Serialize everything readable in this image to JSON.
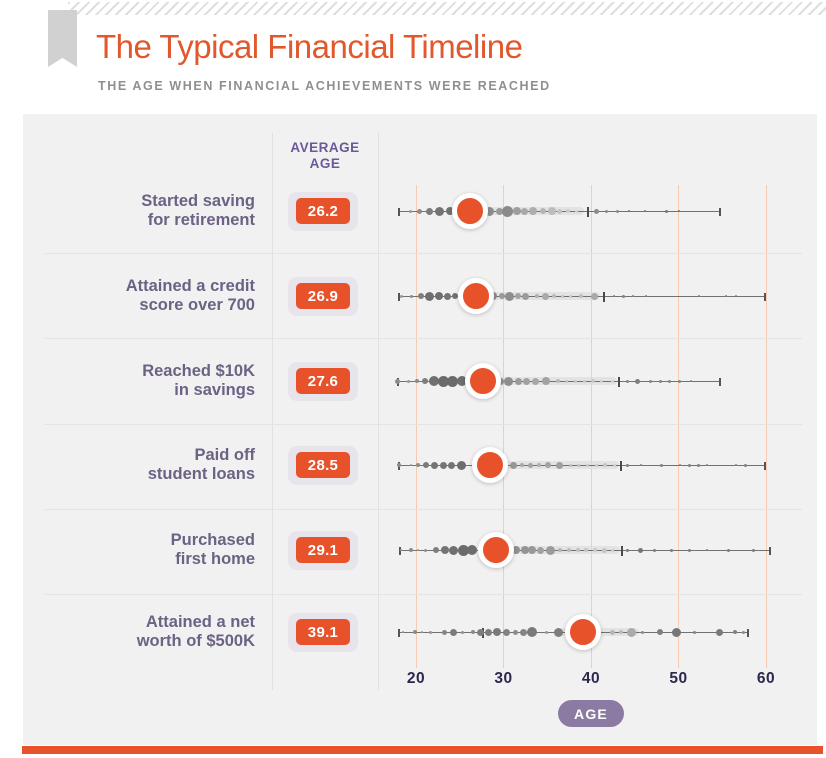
{
  "header": {
    "title": "The Typical Financial Timeline",
    "subtitle": "THE AGE WHEN FINANCIAL ACHIEVEMENTS WERE REACHED"
  },
  "table_header": {
    "line1": "AVERAGE",
    "line2": "AGE"
  },
  "colors": {
    "accent_orange": "#e8522a",
    "title_orange": "#e1582d",
    "label_purple": "#6b6284",
    "header_purple": "#69589a",
    "axis_navy": "#2d274e",
    "pill_purple": "#8b7aa2",
    "card_background": "#f2f1f1",
    "gridline_peach": "#f5ccb2",
    "badge_container": "#e7e4ec"
  },
  "chart_data": {
    "type": "scatter",
    "variant": "dot-strip-plot",
    "title": "The Typical Financial Timeline",
    "subtitle": "THE AGE WHEN FINANCIAL ACHIEVEMENTS WERE REACHED",
    "x_axis": {
      "label": "AGE",
      "ticks": [
        20,
        30,
        40,
        50,
        60
      ],
      "range": [
        17.5,
        61
      ],
      "grid": true
    },
    "rows": [
      {
        "label_lines": [
          "Started saving",
          "for retirement"
        ],
        "average_age": 26.2,
        "whisker": [
          18.1,
          54.7
        ],
        "mid_tick": 39.7,
        "band": [
          27.6,
          39.2
        ],
        "dots": [
          [
            19.4,
            1.5,
            "#999999"
          ],
          [
            20.4,
            2.5,
            "#8c8c8c"
          ],
          [
            21.5,
            3.5,
            "#7c7c7c"
          ],
          [
            22.7,
            4.5,
            "#737373"
          ],
          [
            23.9,
            4,
            "#737373"
          ],
          [
            25,
            3.5,
            "#6f6f6f"
          ],
          [
            28.4,
            4.5,
            "#8e8e8e"
          ],
          [
            29.5,
            3.5,
            "#999999"
          ],
          [
            30.4,
            5.5,
            "#8a8a8a"
          ],
          [
            31.5,
            4,
            "#9e9e9e"
          ],
          [
            32.4,
            3.5,
            "#a8a8a8"
          ],
          [
            33.4,
            4,
            "#aeaeae"
          ],
          [
            34.5,
            3,
            "#b6b6b6"
          ],
          [
            35.5,
            4,
            "#bcbcbc"
          ],
          [
            36.4,
            2.5,
            "#c3c3c3"
          ],
          [
            37.4,
            2,
            "#cbcbcb"
          ],
          [
            38.3,
            1.5,
            "#d0d0d0"
          ],
          [
            40.6,
            2.5,
            "#8b8b8b"
          ],
          [
            41.8,
            1.5,
            "#8b8b8b"
          ],
          [
            43,
            1.5,
            "#8b8b8b"
          ],
          [
            44.3,
            1,
            "#777777"
          ],
          [
            46.2,
            1,
            "#777777"
          ],
          [
            48.6,
            1.5,
            "#777777"
          ],
          [
            50,
            1,
            "#777777"
          ]
        ]
      },
      {
        "label_lines": [
          "Attained a credit",
          "score over 700"
        ],
        "average_age": 26.9,
        "whisker": [
          18.0,
          59.9
        ],
        "mid_tick": 41.5,
        "band": [
          28.0,
          41.0
        ],
        "dots": [
          [
            18.3,
            1.5,
            "#999999"
          ],
          [
            19.5,
            1.5,
            "#8c8c8c"
          ],
          [
            20.6,
            3,
            "#7e7e7e"
          ],
          [
            21.5,
            4.5,
            "#6f6f6f"
          ],
          [
            22.6,
            4,
            "#6f6f6f"
          ],
          [
            23.6,
            3.5,
            "#737373"
          ],
          [
            24.5,
            3,
            "#737373"
          ],
          [
            25.3,
            2.5,
            "#777777"
          ],
          [
            28.8,
            4,
            "#8e8e8e"
          ],
          [
            29.8,
            3,
            "#999999"
          ],
          [
            30.7,
            4.5,
            "#8e8e8e"
          ],
          [
            31.6,
            3,
            "#a3a3a3"
          ],
          [
            32.5,
            3.5,
            "#9b9b9b"
          ],
          [
            33.8,
            2,
            "#b1b1b1"
          ],
          [
            34.8,
            3.5,
            "#aaaaaa"
          ],
          [
            35.8,
            2,
            "#bbbbbb"
          ],
          [
            36.7,
            1.5,
            "#c2c2c2"
          ],
          [
            37.6,
            1.5,
            "#c6c6c6"
          ],
          [
            38.8,
            2,
            "#bdbdbd"
          ],
          [
            40.4,
            3.5,
            "#a9a9a9"
          ],
          [
            42.6,
            1,
            "#818181"
          ],
          [
            43.7,
            1.5,
            "#818181"
          ],
          [
            44.8,
            1,
            "#818181"
          ],
          [
            46.3,
            1,
            "#818181"
          ],
          [
            52.3,
            1,
            "#818181"
          ],
          [
            55.4,
            1,
            "#818181"
          ],
          [
            56.6,
            1,
            "#818181"
          ]
        ]
      },
      {
        "label_lines": [
          "Reached $10K",
          "in savings"
        ],
        "average_age": 27.6,
        "whisker": [
          17.9,
          54.7
        ],
        "mid_tick": 43.2,
        "band": [
          28.5,
          43.0
        ],
        "dots": [
          [
            17.9,
            2.5,
            "#8c8c8c"
          ],
          [
            19.1,
            1.5,
            "#999999"
          ],
          [
            20.1,
            2,
            "#8c8c8c"
          ],
          [
            21,
            3,
            "#7e7e7e"
          ],
          [
            22,
            5,
            "#707070"
          ],
          [
            23.1,
            5.5,
            "#6b6b6b"
          ],
          [
            24.2,
            5.5,
            "#6b6b6b"
          ],
          [
            25.3,
            5,
            "#6f6f6f"
          ],
          [
            29.6,
            3.5,
            "#919191"
          ],
          [
            30.6,
            4.5,
            "#8e8e8e"
          ],
          [
            31.7,
            3.5,
            "#9b9b9b"
          ],
          [
            32.6,
            3.5,
            "#a1a1a1"
          ],
          [
            33.6,
            3.5,
            "#a7a7a7"
          ],
          [
            34.9,
            4,
            "#a3a3a3"
          ],
          [
            36.2,
            2,
            "#b8b8b8"
          ],
          [
            37.2,
            1.5,
            "#c0c0c0"
          ],
          [
            38.2,
            1.5,
            "#c6c6c6"
          ],
          [
            39.2,
            1.5,
            "#cacaca"
          ],
          [
            40.2,
            2,
            "#c6c6c6"
          ],
          [
            41.2,
            1.5,
            "#cecece"
          ],
          [
            42.4,
            1.5,
            "#d2d2d2"
          ],
          [
            44.2,
            1.5,
            "#858585"
          ],
          [
            45.3,
            2.5,
            "#7e7e7e"
          ],
          [
            46.8,
            1.5,
            "#858585"
          ],
          [
            47.9,
            1.5,
            "#858585"
          ],
          [
            49,
            1.5,
            "#858585"
          ],
          [
            50.1,
            1.5,
            "#858585"
          ],
          [
            51.4,
            1,
            "#858585"
          ]
        ]
      },
      {
        "label_lines": [
          "Paid off",
          "student loans"
        ],
        "average_age": 28.5,
        "whisker": [
          18.0,
          59.9
        ],
        "mid_tick": 43.4,
        "band": [
          29.4,
          43.2
        ],
        "dots": [
          [
            18.1,
            2,
            "#8c8c8c"
          ],
          [
            19.4,
            1,
            "#999999"
          ],
          [
            20.2,
            2,
            "#8c8c8c"
          ],
          [
            21.1,
            3,
            "#7c7c7c"
          ],
          [
            22.1,
            3.5,
            "#757575"
          ],
          [
            23.1,
            3.5,
            "#757575"
          ],
          [
            24.1,
            3.5,
            "#737373"
          ],
          [
            25.2,
            4.5,
            "#6d6d6d"
          ],
          [
            31.1,
            3.5,
            "#969696"
          ],
          [
            32.1,
            2,
            "#a8a8a8"
          ],
          [
            33.1,
            2.5,
            "#a3a3a3"
          ],
          [
            34.1,
            2,
            "#b0b0b0"
          ],
          [
            35.1,
            3,
            "#a3a3a3"
          ],
          [
            36.4,
            3.5,
            "#9e9e9e"
          ],
          [
            37.6,
            1.5,
            "#bdbdbd"
          ],
          [
            38.6,
            1.5,
            "#c2c2c2"
          ],
          [
            39.6,
            1.5,
            "#c6c6c6"
          ],
          [
            40.6,
            1.5,
            "#cacaca"
          ],
          [
            41.6,
            2,
            "#c6c6c6"
          ],
          [
            42.7,
            1.5,
            "#cecece"
          ],
          [
            44.2,
            1.5,
            "#818181"
          ],
          [
            45.7,
            1,
            "#818181"
          ],
          [
            48.1,
            1.5,
            "#818181"
          ],
          [
            50.2,
            1,
            "#818181"
          ],
          [
            51.2,
            1.5,
            "#818181"
          ],
          [
            52.3,
            1.5,
            "#818181"
          ],
          [
            53.3,
            1,
            "#818181"
          ],
          [
            56.6,
            1,
            "#818181"
          ],
          [
            57.7,
            1.5,
            "#818181"
          ]
        ]
      },
      {
        "label_lines": [
          "Purchased",
          "first home"
        ],
        "average_age": 29.1,
        "whisker": [
          18.2,
          60.4
        ],
        "mid_tick": 43.5,
        "band": [
          30.0,
          43.3
        ],
        "dots": [
          [
            18.3,
            1,
            "#999999"
          ],
          [
            19.4,
            2,
            "#8c8c8c"
          ],
          [
            20.2,
            1,
            "#999999"
          ],
          [
            21.1,
            1.5,
            "#919191"
          ],
          [
            22.3,
            3,
            "#7e7e7e"
          ],
          [
            23.3,
            4,
            "#757575"
          ],
          [
            24.3,
            4.5,
            "#707070"
          ],
          [
            25.4,
            5.5,
            "#6b6b6b"
          ],
          [
            26.4,
            5,
            "#6d6d6d"
          ],
          [
            31.4,
            4,
            "#919191"
          ],
          [
            32.4,
            4,
            "#949494"
          ],
          [
            33.3,
            4,
            "#989898"
          ],
          [
            34.2,
            3.5,
            "#a1a1a1"
          ],
          [
            35.4,
            4.5,
            "#9b9b9b"
          ],
          [
            36.5,
            2,
            "#b5b5b5"
          ],
          [
            37.5,
            2,
            "#bbbbbb"
          ],
          [
            38.5,
            2,
            "#c0c0c0"
          ],
          [
            39.4,
            2,
            "#c4c4c4"
          ],
          [
            40.4,
            2,
            "#c8c8c8"
          ],
          [
            41.5,
            2.5,
            "#c4c4c4"
          ],
          [
            42.4,
            1.5,
            "#cecece"
          ],
          [
            44.2,
            1.5,
            "#7e7e7e"
          ],
          [
            45.6,
            2.5,
            "#767676"
          ],
          [
            47.2,
            1.5,
            "#7e7e7e"
          ],
          [
            49.2,
            1.5,
            "#7e7e7e"
          ],
          [
            51.2,
            1.5,
            "#7e7e7e"
          ],
          [
            53.2,
            1,
            "#7e7e7e"
          ],
          [
            55.7,
            1.5,
            "#7e7e7e"
          ],
          [
            58.6,
            1.5,
            "#7e7e7e"
          ]
        ]
      },
      {
        "label_lines": [
          "Attained a net",
          "worth of $500K"
        ],
        "average_age": 39.1,
        "whisker": [
          18.0,
          57.9
        ],
        "mid_tick": 27.7,
        "band": [
          36.5,
          45.5
        ],
        "dots": [
          [
            18.5,
            1,
            "#999999"
          ],
          [
            19.9,
            2,
            "#8c8c8c"
          ],
          [
            20.7,
            1,
            "#999999"
          ],
          [
            21.6,
            1.5,
            "#949494"
          ],
          [
            23.3,
            2.5,
            "#858585"
          ],
          [
            24.3,
            3.5,
            "#7c7c7c"
          ],
          [
            25.3,
            1.5,
            "#919191"
          ],
          [
            26.5,
            2,
            "#8c8c8c"
          ],
          [
            27.4,
            3.5,
            "#7e7e7e"
          ],
          [
            28.3,
            3.5,
            "#7e7e7e"
          ],
          [
            29.3,
            4,
            "#7a7a7a"
          ],
          [
            30.3,
            3.5,
            "#828282"
          ],
          [
            31.4,
            2.5,
            "#8c8c8c"
          ],
          [
            32.3,
            3.5,
            "#858585"
          ],
          [
            33.3,
            5,
            "#7a7a7a"
          ],
          [
            34.9,
            1.5,
            "#999999"
          ],
          [
            36.3,
            4.5,
            "#7e7e7e"
          ],
          [
            42.4,
            2.5,
            "#b5b5b5"
          ],
          [
            43.4,
            2,
            "#b9b9b9"
          ],
          [
            44.6,
            4.5,
            "#ababab"
          ],
          [
            45.9,
            1.5,
            "#8c8c8c"
          ],
          [
            47.9,
            3,
            "#7e7e7e"
          ],
          [
            49.8,
            4.5,
            "#767676"
          ],
          [
            51.8,
            1.5,
            "#828282"
          ],
          [
            54.7,
            3.5,
            "#7a7a7a"
          ],
          [
            56.5,
            2,
            "#828282"
          ],
          [
            57.4,
            1.5,
            "#8c8c8c"
          ]
        ]
      }
    ]
  }
}
